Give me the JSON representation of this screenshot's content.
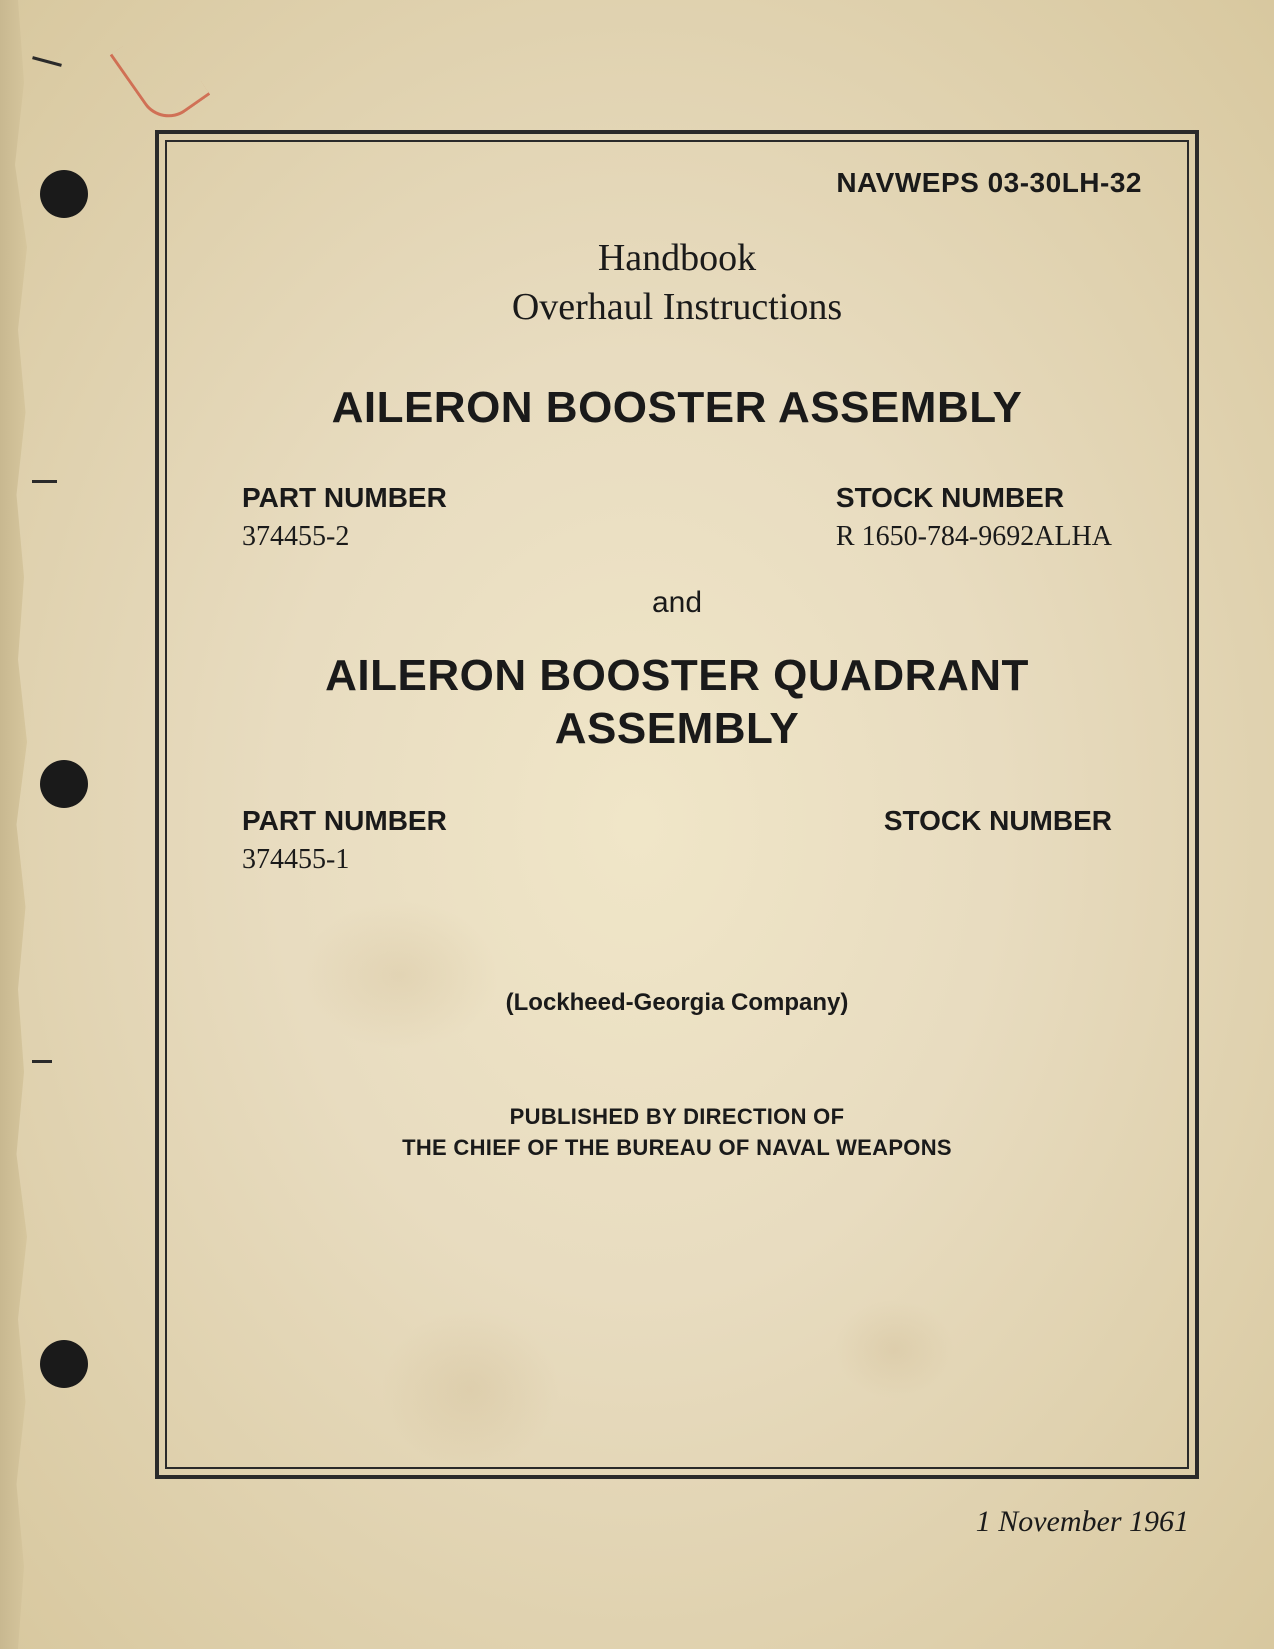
{
  "document": {
    "doc_number": "NAVWEPS 03-30LH-32",
    "handbook_line1": "Handbook",
    "handbook_line2": "Overhaul Instructions",
    "section1": {
      "title": "AILERON BOOSTER ASSEMBLY",
      "part_label": "PART NUMBER",
      "part_number": "374455-2",
      "stock_label": "STOCK NUMBER",
      "stock_number": "R 1650-784-9692ALHA"
    },
    "connector": "and",
    "section2": {
      "title_line1": "AILERON BOOSTER QUADRANT",
      "title_line2": "ASSEMBLY",
      "part_label": "PART NUMBER",
      "part_number": "374455-1",
      "stock_label": "STOCK NUMBER",
      "stock_number": ""
    },
    "company": "(Lockheed-Georgia Company)",
    "publisher_line1": "PUBLISHED BY DIRECTION OF",
    "publisher_line2": "THE CHIEF OF THE BUREAU OF NAVAL WEAPONS",
    "date": "1 November 1961"
  },
  "styling": {
    "page_bg_color": "#e8dcc0",
    "text_color": "#1a1a1a",
    "border_color": "#2a2a2a",
    "hole_color": "#1a1a1a",
    "title_fontsize": 44,
    "subtitle_fontsize": 38,
    "label_fontsize": 28,
    "company_fontsize": 24,
    "publisher_fontsize": 22,
    "date_fontsize": 30
  }
}
